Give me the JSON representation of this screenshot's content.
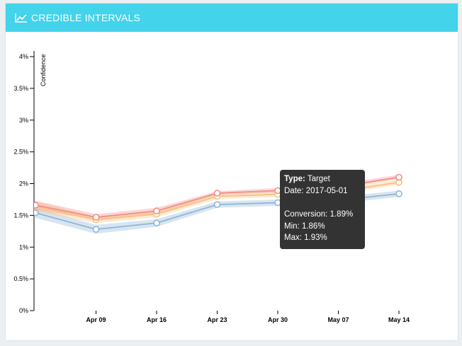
{
  "header": {
    "title": "CREDIBLE INTERVALS",
    "icon": "line-chart-icon"
  },
  "chart_data": {
    "type": "line",
    "title": "",
    "ylabel": "Confidence",
    "xlabel": "",
    "x": [
      "2017-04-03",
      "2017-04-10",
      "2017-04-17",
      "2017-04-24",
      "2017-05-01",
      "2017-05-08",
      "2017-05-15"
    ],
    "x_ticks": [
      {
        "date": "2017-04-10",
        "label": "Apr 09"
      },
      {
        "date": "2017-04-17",
        "label": "Apr 16"
      },
      {
        "date": "2017-04-24",
        "label": "Apr 23"
      },
      {
        "date": "2017-05-01",
        "label": "Apr 30"
      },
      {
        "date": "2017-05-08",
        "label": "May 07"
      },
      {
        "date": "2017-05-15",
        "label": "May 14"
      }
    ],
    "y_ticks": [
      "0%",
      "0.5%",
      "1%",
      "1.5%",
      "2%",
      "2.5%",
      "3%",
      "3.5%",
      "4%"
    ],
    "ylim": [
      0,
      4
    ],
    "grid": false,
    "series": [
      {
        "name": "Target",
        "color": "#f28e86",
        "values": [
          1.66,
          1.47,
          1.57,
          1.85,
          1.89,
          1.95,
          2.1
        ],
        "lower": [
          1.59,
          1.43,
          1.53,
          1.82,
          1.86,
          1.92,
          2.07
        ],
        "upper": [
          1.73,
          1.52,
          1.62,
          1.88,
          1.93,
          1.99,
          2.14
        ]
      },
      {
        "color": "#f7c27d",
        "values": [
          1.64,
          1.43,
          1.52,
          1.8,
          1.83,
          1.88,
          2.02
        ],
        "lower": [
          1.56,
          1.38,
          1.47,
          1.76,
          1.79,
          1.84,
          1.98
        ],
        "upper": [
          1.72,
          1.48,
          1.57,
          1.84,
          1.87,
          1.92,
          2.06
        ]
      },
      {
        "color": "#8fb5d6",
        "values": [
          1.54,
          1.28,
          1.38,
          1.67,
          1.7,
          1.74,
          1.84
        ],
        "lower": [
          1.46,
          1.21,
          1.32,
          1.62,
          1.65,
          1.69,
          1.79
        ],
        "upper": [
          1.62,
          1.35,
          1.44,
          1.72,
          1.75,
          1.79,
          1.89
        ]
      }
    ]
  },
  "tooltip": {
    "type_label": "Type:",
    "type_value": "Target",
    "date_label": "Date:",
    "date_value": "2017-05-01",
    "conversion_label": "Conversion:",
    "conversion_value": "1.89%",
    "min_label": "Min:",
    "min_value": "1.86%",
    "max_label": "Max:",
    "max_value": "1.93%"
  }
}
